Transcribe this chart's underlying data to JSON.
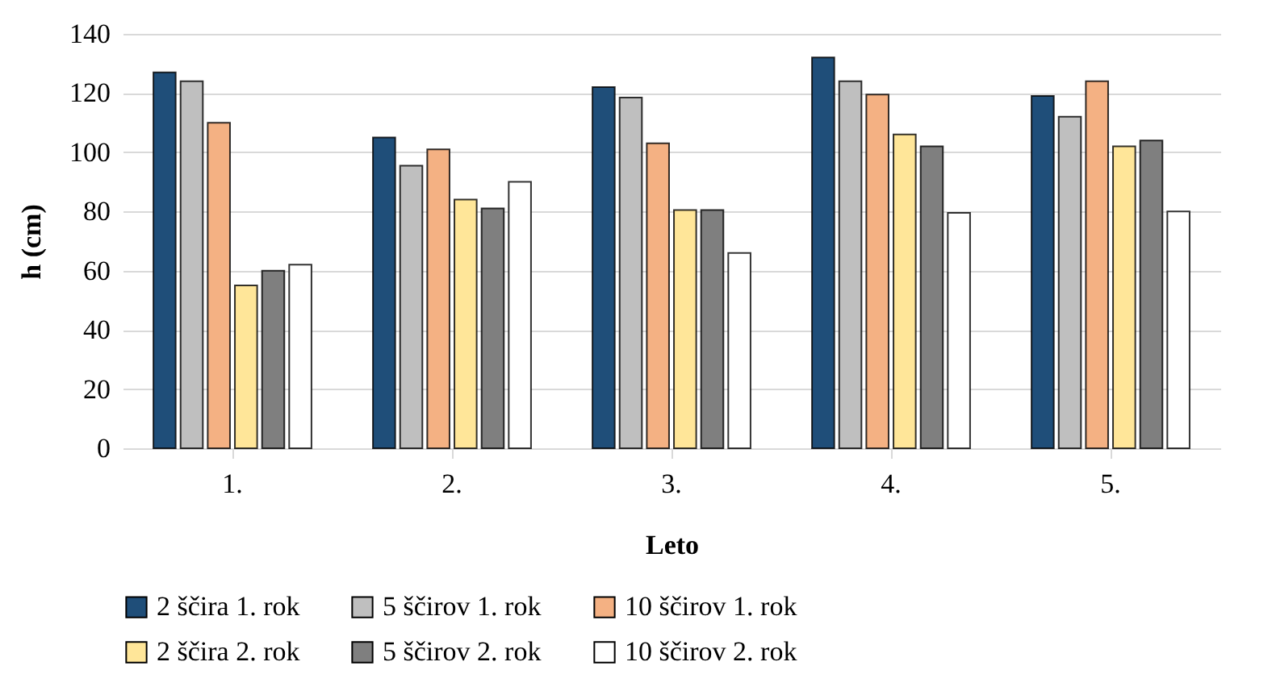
{
  "chart_data": {
    "type": "bar",
    "xlabel": "Leto",
    "ylabel": "h (cm)",
    "categories": [
      "1.",
      "2.",
      "3.",
      "4.",
      "5."
    ],
    "series": [
      {
        "name": "2 ščira 1. rok",
        "color": "#1f4e79",
        "values": [
          127,
          105,
          122,
          132,
          119
        ]
      },
      {
        "name": "5 ščirov 1. rok",
        "color": "#bfbfbf",
        "values": [
          124,
          95.5,
          118.5,
          124,
          112
        ]
      },
      {
        "name": "10 ščirov 1. rok",
        "color": "#f4b183",
        "values": [
          110,
          101,
          103,
          119.5,
          124
        ]
      },
      {
        "name": "2 ščira 2. rok",
        "color": "#ffe699",
        "values": [
          55,
          84,
          80.5,
          106,
          102
        ]
      },
      {
        "name": "5 ščirov 2. rok",
        "color": "#7f7f7f",
        "values": [
          60,
          81,
          80.5,
          102,
          104
        ]
      },
      {
        "name": "10 ščirov 2. rok",
        "color": "#ffffff",
        "values": [
          62,
          90,
          66,
          79.5,
          80
        ]
      }
    ],
    "ylim": [
      0,
      140
    ],
    "yticks": [
      0,
      20,
      40,
      60,
      80,
      100,
      120,
      140
    ],
    "grid": "y",
    "legend": "bottom"
  }
}
